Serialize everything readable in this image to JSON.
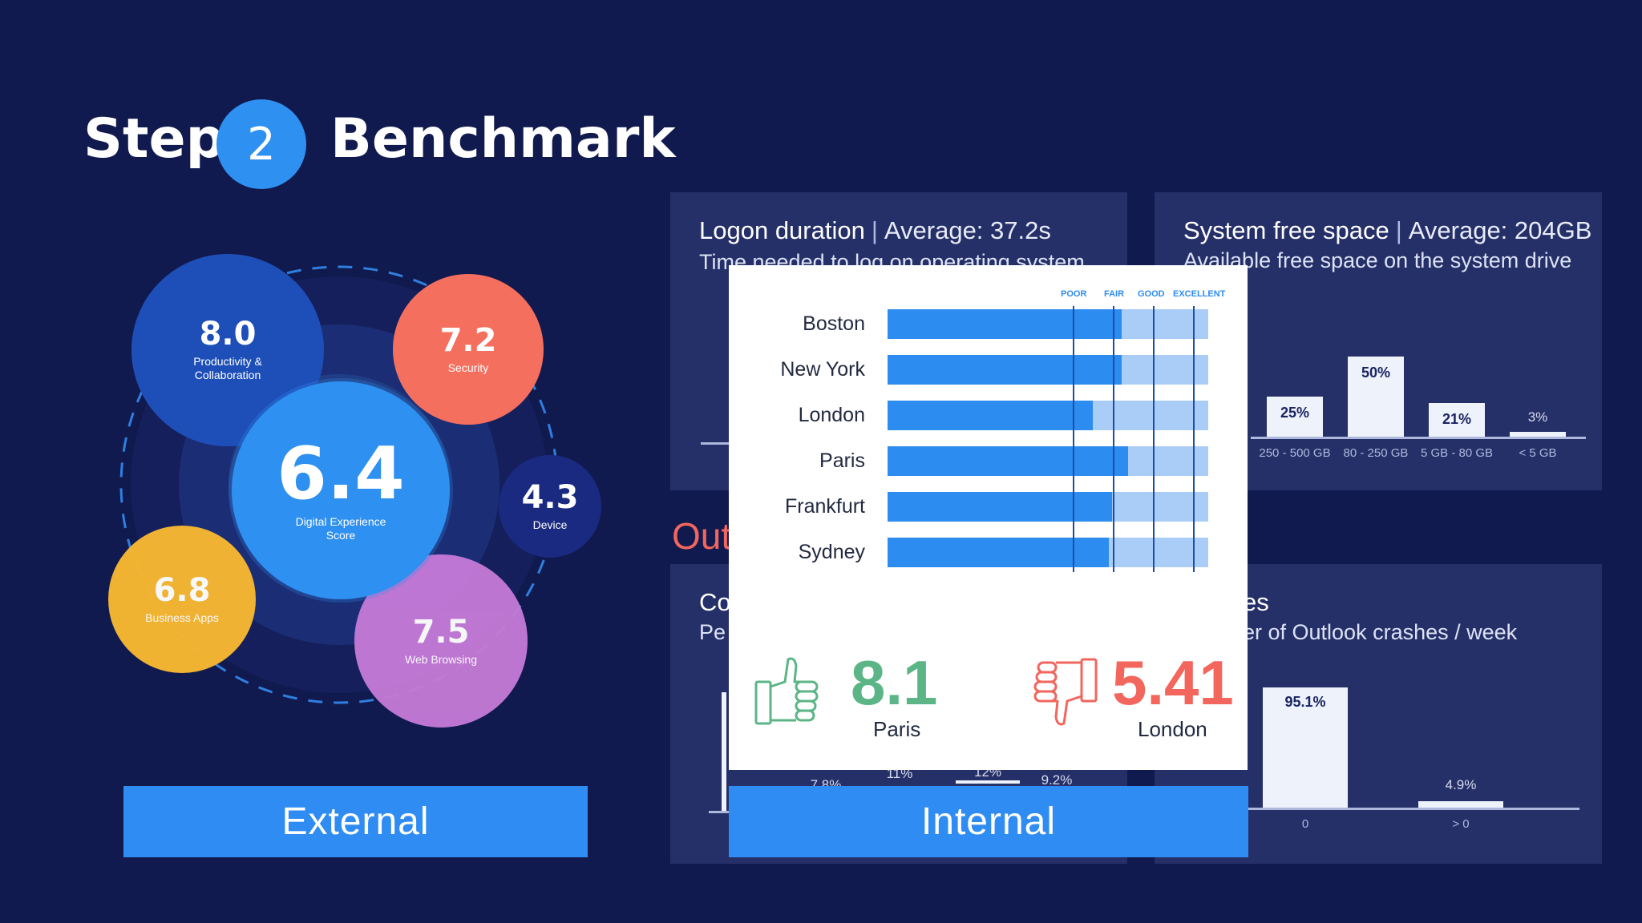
{
  "title": {
    "step_word": "Step",
    "step_number": "2",
    "heading": "Benchmark"
  },
  "bubbles": {
    "center": {
      "value": "6.4",
      "label": "Digital Experience Score",
      "color": "#2e90f0"
    },
    "productivity": {
      "value": "8.0",
      "label": "Productivity & Collaboration",
      "color": "#1e4fb8"
    },
    "security": {
      "value": "7.2",
      "label": "Security",
      "color": "#f56f5e"
    },
    "device": {
      "value": "4.3",
      "label": "Device",
      "color": "#1a2a80"
    },
    "business": {
      "value": "6.8",
      "label": "Business Apps",
      "color": "#f7b731"
    },
    "web": {
      "value": "7.5",
      "label": "Web Browsing",
      "color": "#c47ad6"
    }
  },
  "external_label": "External",
  "internal_label": "Internal",
  "panels": {
    "logon": {
      "title": "Logon duration",
      "average": "Average: 37.2s",
      "subtitle": "Time needed to log on operating system"
    },
    "free_space": {
      "title": "System free space",
      "average": "Average: 204GB",
      "subtitle": "Available free space on the system drive",
      "chart_data": {
        "type": "bar",
        "categories": [
          "250 - 500 GB",
          "80 - 250 GB",
          "5 GB - 80 GB",
          "< 5 GB"
        ],
        "values": [
          25,
          50,
          21,
          3
        ],
        "labels": [
          "25%",
          "50%",
          "21%",
          "3%"
        ],
        "ylim": [
          0,
          50
        ]
      }
    },
    "outlook_heading": "Out",
    "crashes": {
      "title_fragment": "es",
      "subtitle_fragment": "er of Outlook crashes / week",
      "chart_data": {
        "type": "bar",
        "categories": [
          "0",
          "> 0"
        ],
        "values": [
          95.1,
          4.9
        ],
        "labels": [
          "95.1%",
          "4.9%"
        ],
        "ylim": [
          0,
          95.1
        ]
      }
    },
    "cpu": {
      "title_fragment": "Co",
      "subtitle_fragment": "Pe",
      "partial_labels": [
        "7.8%",
        "11%",
        "12%",
        "9.2%"
      ]
    }
  },
  "card": {
    "levels": [
      "POOR",
      "FAIR",
      "GOOD",
      "EXCELLENT"
    ],
    "chart_data": {
      "type": "bar",
      "orientation": "horizontal",
      "categories": [
        "Boston",
        "New York",
        "London",
        "Paris",
        "Frankfurt",
        "Sydney"
      ],
      "values": [
        0.73,
        0.73,
        0.64,
        0.75,
        0.7,
        0.69
      ],
      "xlim": [
        0,
        1
      ],
      "thresholds": [
        0.58,
        0.705,
        0.83,
        0.955
      ]
    },
    "best": {
      "score": "8.1",
      "city": "Paris"
    },
    "worst": {
      "score": "5.41",
      "city": "London"
    }
  }
}
